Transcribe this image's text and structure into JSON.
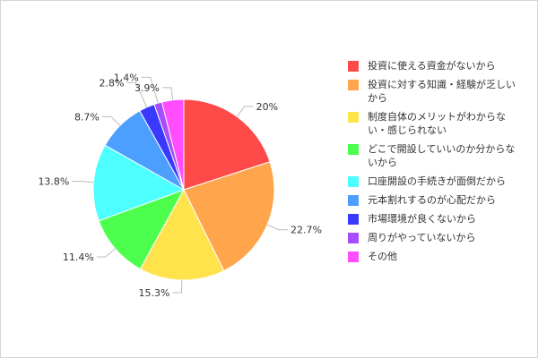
{
  "chart_data": {
    "type": "pie",
    "start_angle_deg": 0,
    "direction": "clockwise",
    "slices": [
      {
        "label": "投資に使える資金がないから",
        "value": 20,
        "value_label": "20%",
        "color": "#ff4a4a"
      },
      {
        "label": "投資に対する知識・経験が乏しいから",
        "value": 22.7,
        "value_label": "22.7%",
        "color": "#ffa64d"
      },
      {
        "label": "制度自体のメリットがわからない・感じられない",
        "value": 15.3,
        "value_label": "15.3%",
        "color": "#ffe34d"
      },
      {
        "label": "どこで開設していいのか分からないから",
        "value": 11.4,
        "value_label": "11.4%",
        "color": "#4dff4d"
      },
      {
        "label": "口座開設の手続きが面倒だから",
        "value": 13.8,
        "value_label": "13.8%",
        "color": "#4dffff"
      },
      {
        "label": "元本割れするのが心配だから",
        "value": 8.7,
        "value_label": "8.7%",
        "color": "#4d9fff"
      },
      {
        "label": "市場環境が良くないから",
        "value": 2.8,
        "value_label": "2.8%",
        "color": "#3a3aff"
      },
      {
        "label": "周りがやっていないから",
        "value": 1.4,
        "value_label": "1.4%",
        "color": "#a64dff"
      },
      {
        "label": "その他",
        "value": 3.9,
        "value_label": "3.9%",
        "color": "#ff4dff"
      }
    ],
    "legend_position": "right"
  }
}
